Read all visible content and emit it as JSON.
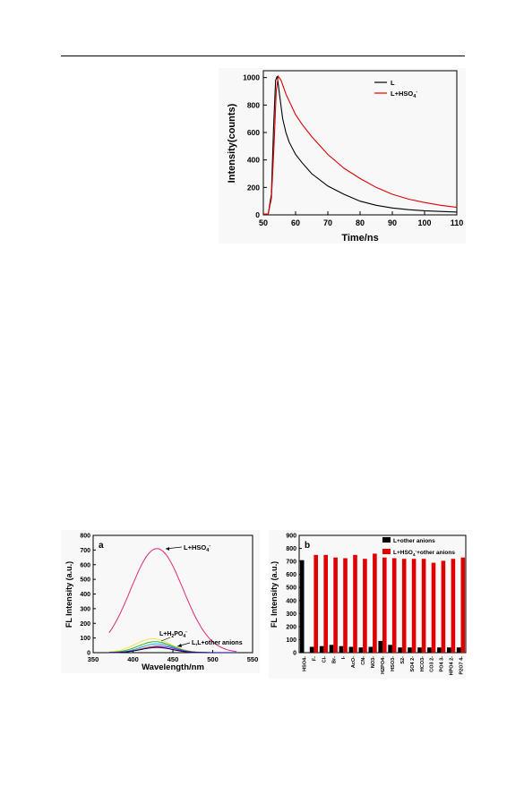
{
  "chart_data": [
    {
      "type": "line",
      "xlabel": "Time/ns",
      "ylabel": "Intensity(counts)",
      "xlim": [
        50,
        110
      ],
      "ylim": [
        0,
        1050
      ],
      "xticks": [
        "50",
        "60",
        "70",
        "80",
        "90",
        "100",
        "110"
      ],
      "yticks": [
        "0",
        "200",
        "400",
        "600",
        "800",
        "1000"
      ],
      "legend_position": "top-right",
      "series": [
        {
          "name": "L",
          "color": "#000000",
          "x": [
            50,
            51.5,
            52.5,
            53.2,
            53.8,
            54.3,
            55,
            56,
            57,
            58,
            60,
            62,
            65,
            70,
            75,
            80,
            85,
            90,
            95,
            100,
            105,
            110
          ],
          "y": [
            5,
            5,
            150,
            650,
            980,
            1010,
            880,
            700,
            600,
            530,
            440,
            380,
            300,
            210,
            150,
            100,
            70,
            50,
            38,
            30,
            25,
            20
          ]
        },
        {
          "name": "L+HSO4-",
          "color": "#e00000",
          "x": [
            50,
            51.5,
            52.5,
            53.3,
            54,
            54.6,
            55.5,
            57,
            60,
            62,
            65,
            70,
            75,
            80,
            85,
            90,
            95,
            100,
            105,
            110
          ],
          "y": [
            5,
            5,
            120,
            500,
            900,
            1010,
            980,
            880,
            730,
            660,
            570,
            440,
            340,
            265,
            200,
            150,
            115,
            90,
            70,
            55
          ]
        }
      ]
    },
    {
      "type": "line",
      "panel_label": "a",
      "xlabel": "Wavelength/nm",
      "ylabel": "FL Intensity (a.u.)",
      "xlim": [
        350,
        550
      ],
      "ylim": [
        0,
        800
      ],
      "xticks": [
        "350",
        "400",
        "450",
        "500",
        "550"
      ],
      "yticks": [
        "0",
        "100",
        "200",
        "300",
        "400",
        "500",
        "600",
        "700",
        "800"
      ],
      "annotations": [
        "L+HSO4-",
        "L+H2PO4-",
        "L,L+other anions"
      ],
      "series": [
        {
          "color": "#e0287a",
          "peak_x": 430,
          "peak_y": 710,
          "sigma": 33
        },
        {
          "color": "#ffe14a",
          "peak_x": 425,
          "peak_y": 95,
          "sigma": 22
        },
        {
          "color": "#1fc01f",
          "peak_x": 428,
          "peak_y": 75,
          "sigma": 21
        },
        {
          "color": "#2a9df4",
          "peak_x": 430,
          "peak_y": 60,
          "sigma": 20
        },
        {
          "color": "#8a2be2",
          "peak_x": 432,
          "peak_y": 45,
          "sigma": 20
        },
        {
          "color": "#c06000",
          "peak_x": 428,
          "peak_y": 40,
          "sigma": 19
        },
        {
          "color": "#000080",
          "peak_x": 430,
          "peak_y": 35,
          "sigma": 20
        }
      ]
    },
    {
      "type": "bar",
      "panel_label": "b",
      "ylabel": "FL Intensity (a.u.)",
      "ylim": [
        0,
        900
      ],
      "yticks": [
        "0",
        "100",
        "200",
        "300",
        "400",
        "500",
        "600",
        "700",
        "800",
        "900"
      ],
      "legend_position": "top-right",
      "categories": [
        "HSO4-",
        "F-",
        "Cl-",
        "Br-",
        "I-",
        "AcO-",
        "CN-",
        "NO3-",
        "H2PO4-",
        "HSO3-",
        "S2-",
        "SO4 2-",
        "HCO3-",
        "CO3 2-",
        "PO4 3-",
        "HPO4 2-",
        "P2O7 4-"
      ],
      "series": [
        {
          "name": "L+other anions",
          "color": "#000000",
          "values": [
            710,
            45,
            50,
            60,
            50,
            45,
            40,
            45,
            90,
            60,
            40,
            40,
            40,
            40,
            40,
            40,
            40
          ]
        },
        {
          "name": "L+HSO4-+other anions",
          "color": "#e00000",
          "values": [
            0,
            750,
            750,
            730,
            725,
            750,
            720,
            760,
            730,
            725,
            720,
            720,
            720,
            690,
            705,
            720,
            730
          ]
        }
      ]
    }
  ],
  "labels": {
    "topLegendL": "L",
    "topLegendLHSO4": "L+HSO",
    "topLegendSub": "4",
    "topLegendSup": "-",
    "annHSO4": "L+HSO",
    "annH2PO4_pre": "L+H",
    "annH2PO4_mid": "2",
    "annH2PO4_post": "PO",
    "annOther": "L,L+other anions",
    "sub4": "4",
    "supMinus": "-",
    "legB1": "L+other anions",
    "legB2": "L+HSO",
    "legB2post": "+other anions"
  }
}
